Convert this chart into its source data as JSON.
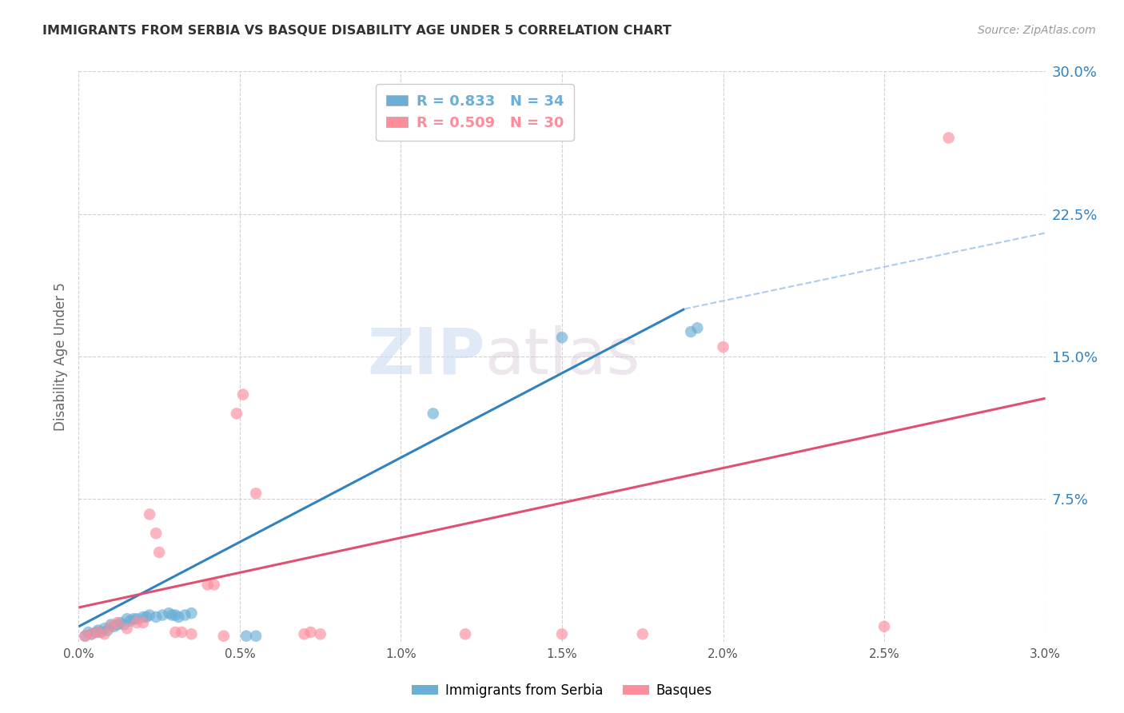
{
  "title": "IMMIGRANTS FROM SERBIA VS BASQUE DISABILITY AGE UNDER 5 CORRELATION CHART",
  "source": "Source: ZipAtlas.com",
  "ylabel": "Disability Age Under 5",
  "xlim": [
    0.0,
    0.03
  ],
  "ylim": [
    0.0,
    0.3
  ],
  "xtick_labels": [
    "0.0%",
    "0.5%",
    "1.0%",
    "1.5%",
    "2.0%",
    "2.5%",
    "3.0%"
  ],
  "xtick_values": [
    0.0,
    0.005,
    0.01,
    0.015,
    0.02,
    0.025,
    0.03
  ],
  "ytick_labels": [
    "7.5%",
    "15.0%",
    "22.5%",
    "30.0%"
  ],
  "ytick_values": [
    0.075,
    0.15,
    0.225,
    0.3
  ],
  "legend_entries": [
    {
      "label": "R = 0.833   N = 34",
      "color": "#6baed6"
    },
    {
      "label": "R = 0.509   N = 30",
      "color": "#fc8d9c"
    }
  ],
  "serbia_color": "#6baed6",
  "basque_color": "#fc8d9c",
  "serbia_line_color": "#3182bd",
  "basque_line_color": "#e05070",
  "dashed_line_color": "#aaccee",
  "background_color": "#ffffff",
  "watermark_left": "ZIP",
  "watermark_right": "atlas",
  "serbia_line_x": [
    0.0,
    0.0188
  ],
  "serbia_line_y": [
    0.008,
    0.175
  ],
  "basque_line_x": [
    0.0,
    0.03
  ],
  "basque_line_y": [
    0.018,
    0.128
  ],
  "dashed_line_x": [
    0.0188,
    0.03
  ],
  "dashed_line_y": [
    0.175,
    0.215
  ],
  "serbia_scatter_x": [
    0.0002,
    0.0003,
    0.0004,
    0.00055,
    0.0006,
    0.0007,
    0.0008,
    0.0009,
    0.001,
    0.0011,
    0.0012,
    0.0013,
    0.0014,
    0.0015,
    0.0016,
    0.0017,
    0.0018,
    0.002,
    0.0021,
    0.0022,
    0.0024,
    0.0026,
    0.0028,
    0.0029,
    0.003,
    0.0031,
    0.0033,
    0.0035,
    0.0052,
    0.0055,
    0.011,
    0.015,
    0.019,
    0.0192
  ],
  "serbia_scatter_y": [
    0.003,
    0.005,
    0.004,
    0.005,
    0.006,
    0.005,
    0.007,
    0.006,
    0.009,
    0.008,
    0.009,
    0.01,
    0.009,
    0.012,
    0.011,
    0.012,
    0.012,
    0.013,
    0.013,
    0.014,
    0.013,
    0.014,
    0.015,
    0.014,
    0.014,
    0.013,
    0.014,
    0.015,
    0.003,
    0.003,
    0.12,
    0.16,
    0.163,
    0.165
  ],
  "basque_scatter_x": [
    0.0002,
    0.0004,
    0.0006,
    0.0008,
    0.001,
    0.0012,
    0.0015,
    0.0018,
    0.002,
    0.0022,
    0.0024,
    0.0025,
    0.003,
    0.0032,
    0.0035,
    0.004,
    0.0042,
    0.0045,
    0.0049,
    0.0051,
    0.0055,
    0.007,
    0.0072,
    0.0075,
    0.012,
    0.015,
    0.0175,
    0.02,
    0.025,
    0.027
  ],
  "basque_scatter_y": [
    0.003,
    0.004,
    0.005,
    0.004,
    0.008,
    0.01,
    0.007,
    0.01,
    0.01,
    0.067,
    0.057,
    0.047,
    0.005,
    0.005,
    0.004,
    0.03,
    0.03,
    0.003,
    0.12,
    0.13,
    0.078,
    0.004,
    0.005,
    0.004,
    0.004,
    0.004,
    0.004,
    0.155,
    0.008,
    0.265
  ]
}
